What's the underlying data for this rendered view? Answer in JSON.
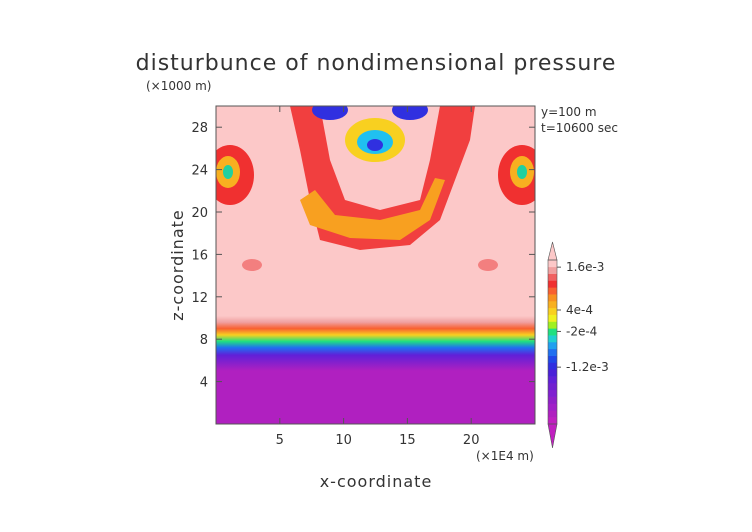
{
  "chart_data": {
    "type": "heatmap",
    "title": "disturbunce of nondimensional pressure",
    "xlabel": "x-coordinate",
    "ylabel": "z-coordinate",
    "x_unit": "(×1E4 m)",
    "y_unit": "(×1000 m)",
    "annotations": [
      "y=100 m",
      "t=10600 sec"
    ],
    "xlim": [
      0,
      25
    ],
    "ylim": [
      0,
      30
    ],
    "x_ticks": [
      5,
      10,
      15,
      20
    ],
    "y_ticks": [
      4,
      8,
      12,
      16,
      20,
      24,
      28
    ],
    "colorbar": {
      "labels": [
        {
          "text": "1.6e-3",
          "value": 0.0016
        },
        {
          "text": "4e-4",
          "value": 0.0004
        },
        {
          "text": "-2e-4",
          "value": -0.0002
        },
        {
          "text": "-1.2e-3",
          "value": -0.0012
        }
      ],
      "levels": [
        -0.0026,
        -0.0024,
        -0.0022,
        -0.002,
        -0.0018,
        -0.0016,
        -0.0014,
        -0.0012,
        -0.001,
        -0.0008,
        -0.0006,
        -0.0004,
        -0.0002,
        0,
        0.0002,
        0.0004,
        0.0006,
        0.0008,
        0.001,
        0.0012,
        0.0014,
        0.0016,
        0.0018
      ],
      "colors": [
        "#c020c0",
        "#b020c0",
        "#a020c8",
        "#9020c8",
        "#8020d0",
        "#7020d0",
        "#6020d8",
        "#4a20d8",
        "#3030e0",
        "#2048e8",
        "#2070f0",
        "#20a0f0",
        "#20d0d0",
        "#20e080",
        "#a0f020",
        "#f0f020",
        "#f8d020",
        "#f8b020",
        "#f89020",
        "#f86030",
        "#f03030",
        "#f06060",
        "#f0a0a0",
        "#fcc8c8"
      ]
    },
    "bands": [
      {
        "z": 0,
        "value": -0.0026
      },
      {
        "z": 5,
        "value": -0.0025
      },
      {
        "z": 6.5,
        "value": -0.0016
      },
      {
        "z": 7.2,
        "value": -0.0008
      },
      {
        "z": 7.8,
        "value": -0.0002
      },
      {
        "z": 8.4,
        "value": 0.0004
      },
      {
        "z": 9.0,
        "value": 0.001
      },
      {
        "z": 9.6,
        "value": 0.0016
      },
      {
        "z": 10.2,
        "value": 0.0019
      }
    ],
    "features": [
      {
        "name": "upper arc",
        "value": 0.0008
      },
      {
        "name": "left flank peak",
        "value": -0.0004
      },
      {
        "name": "right flank peak",
        "value": -0.0004
      },
      {
        "name": "central top minimum",
        "value": -0.0014
      }
    ]
  }
}
